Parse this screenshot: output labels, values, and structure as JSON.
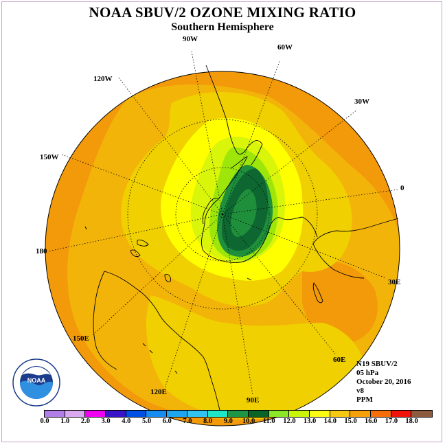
{
  "header": {
    "title": "NOAA SBUV/2 OZONE MIXING RATIO",
    "subtitle": "Southern Hemisphere"
  },
  "map": {
    "projection": "polar stereographic",
    "hemisphere": "south",
    "longitude_labels": {
      "w90": "90W",
      "w60": "60W",
      "w30": "30W",
      "zero": "0",
      "e30": "30E",
      "e60": "60E",
      "e90": "90E",
      "e120": "120E",
      "e150": "150E",
      "d180": "180",
      "w150": "150W",
      "w120": "120W"
    },
    "colors": {
      "c_12_13": "#ffff00",
      "c_13_14": "#f0d000",
      "c_14_15": "#f3b40a",
      "c_15_16": "#f39a0a",
      "c_11_12": "#d8f50a",
      "c_10_11": "#9ee60a",
      "c_9_10": "#1f8f3c",
      "c_8_9": "#0e6630"
    }
  },
  "info": {
    "satellite": "N19 SBUV/2",
    "level": "05 hPa",
    "date": "October 20, 2016",
    "version": "v8",
    "units": "PPM"
  },
  "logo": {
    "text": "NOAA",
    "ring_text": "NATIONAL OCEANIC AND ATMOSPHERIC ADMINISTRATION",
    "bottom_text": "U.S. DEPARTMENT OF COMMERCE"
  },
  "colorbar": {
    "colors": [
      "#b07ee6",
      "#d9a8f0",
      "#f000f0",
      "#3a14c8",
      "#0050e6",
      "#148cf0",
      "#1ea5f0",
      "#32c3f0",
      "#1ee6c8",
      "#1e9646",
      "#0a6428",
      "#8ce628",
      "#c8f50a",
      "#fafa14",
      "#f5c814",
      "#f5a00a",
      "#f56e0a",
      "#f0140a",
      "#8c5a3c"
    ],
    "labels": [
      "0.0",
      "1.0",
      "2.0",
      "3.0",
      "4.0",
      "5.0",
      "6.0",
      "7.0",
      "8.0",
      "9.0",
      "10.0",
      "11.0",
      "12.0",
      "13.0",
      "14.0",
      "15.0",
      "16.0",
      "17.0",
      "18.0"
    ]
  }
}
